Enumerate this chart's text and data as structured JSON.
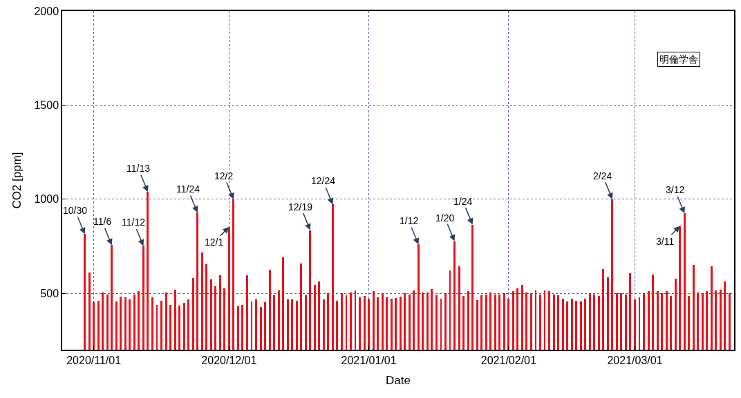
{
  "chart_data": {
    "type": "bar",
    "xlabel": "Date",
    "ylabel": "CO2 [ppm]",
    "grid": true,
    "xlim": [
      "2020-10-25",
      "2021-03-23"
    ],
    "xticks": [
      {
        "value": "2020-11-01",
        "label": "2020/11/01"
      },
      {
        "value": "2020-12-01",
        "label": "2020/12/01"
      },
      {
        "value": "2021-01-01",
        "label": "2021/01/01"
      },
      {
        "value": "2021-02-01",
        "label": "2021/02/01"
      },
      {
        "value": "2021-03-01",
        "label": "2021/03/01"
      }
    ],
    "ylim": [
      200,
      2000
    ],
    "yticks": [
      500,
      1000,
      1500,
      2000
    ],
    "x": [
      "2020-10-30",
      "2020-10-31",
      "2020-11-01",
      "2020-11-02",
      "2020-11-03",
      "2020-11-04",
      "2020-11-05",
      "2020-11-06",
      "2020-11-07",
      "2020-11-08",
      "2020-11-09",
      "2020-11-10",
      "2020-11-11",
      "2020-11-12",
      "2020-11-13",
      "2020-11-14",
      "2020-11-15",
      "2020-11-16",
      "2020-11-17",
      "2020-11-18",
      "2020-11-19",
      "2020-11-20",
      "2020-11-21",
      "2020-11-22",
      "2020-11-23",
      "2020-11-24",
      "2020-11-25",
      "2020-11-26",
      "2020-11-27",
      "2020-11-28",
      "2020-11-29",
      "2020-11-30",
      "2020-12-01",
      "2020-12-02",
      "2020-12-03",
      "2020-12-04",
      "2020-12-05",
      "2020-12-06",
      "2020-12-07",
      "2020-12-08",
      "2020-12-09",
      "2020-12-10",
      "2020-12-11",
      "2020-12-12",
      "2020-12-13",
      "2020-12-14",
      "2020-12-15",
      "2020-12-16",
      "2020-12-17",
      "2020-12-18",
      "2020-12-19",
      "2020-12-20",
      "2020-12-21",
      "2020-12-22",
      "2020-12-23",
      "2020-12-24",
      "2020-12-25",
      "2020-12-26",
      "2020-12-27",
      "2020-12-28",
      "2020-12-29",
      "2020-12-30",
      "2020-12-31",
      "2021-01-01",
      "2021-01-02",
      "2021-01-03",
      "2021-01-04",
      "2021-01-05",
      "2021-01-06",
      "2021-01-07",
      "2021-01-08",
      "2021-01-09",
      "2021-01-10",
      "2021-01-11",
      "2021-01-12",
      "2021-01-13",
      "2021-01-14",
      "2021-01-15",
      "2021-01-16",
      "2021-01-17",
      "2021-01-18",
      "2021-01-19",
      "2021-01-20",
      "2021-01-21",
      "2021-01-22",
      "2021-01-23",
      "2021-01-24",
      "2021-01-25",
      "2021-01-26",
      "2021-01-27",
      "2021-01-28",
      "2021-01-29",
      "2021-01-30",
      "2021-01-31",
      "2021-02-01",
      "2021-02-02",
      "2021-02-03",
      "2021-02-04",
      "2021-02-05",
      "2021-02-06",
      "2021-02-07",
      "2021-02-08",
      "2021-02-09",
      "2021-02-10",
      "2021-02-11",
      "2021-02-12",
      "2021-02-13",
      "2021-02-14",
      "2021-02-15",
      "2021-02-16",
      "2021-02-17",
      "2021-02-18",
      "2021-02-19",
      "2021-02-20",
      "2021-02-21",
      "2021-02-22",
      "2021-02-23",
      "2021-02-24",
      "2021-02-25",
      "2021-02-26",
      "2021-02-27",
      "2021-02-28",
      "2021-03-01",
      "2021-03-02",
      "2021-03-03",
      "2021-03-04",
      "2021-03-05",
      "2021-03-06",
      "2021-03-07",
      "2021-03-08",
      "2021-03-09",
      "2021-03-10",
      "2021-03-11",
      "2021-03-12",
      "2021-03-13",
      "2021-03-14",
      "2021-03-15",
      "2021-03-16",
      "2021-03-17",
      "2021-03-18",
      "2021-03-19",
      "2021-03-20",
      "2021-03-21",
      "2021-03-22"
    ],
    "series": [
      {
        "color": "#e8141c",
        "values": [
          815,
          610,
          452,
          461,
          504,
          495,
          756,
          456,
          482,
          478,
          466,
          495,
          511,
          752,
          1039,
          478,
          440,
          461,
          504,
          440,
          520,
          436,
          448,
          469,
          583,
          929,
          718,
          655,
          575,
          538,
          596,
          525,
          852,
          1000,
          431,
          440,
          596,
          456,
          466,
          427,
          452,
          624,
          490,
          515,
          692,
          466,
          466,
          461,
          659,
          490,
          836,
          544,
          563,
          469,
          499,
          972,
          461,
          499,
          490,
          504,
          515,
          478,
          486,
          473,
          511,
          478,
          499,
          478,
          473,
          475,
          482,
          500,
          495,
          514,
          760,
          506,
          506,
          522,
          489,
          473,
          499,
          621,
          777,
          645,
          485,
          510,
          865,
          464,
          490,
          495,
          506,
          495,
          495,
          499,
          473,
          511,
          528,
          544,
          506,
          499,
          515,
          495,
          515,
          511,
          495,
          489,
          473,
          456,
          473,
          461,
          456,
          473,
          499,
          495,
          485,
          628,
          586,
          1000,
          499,
          499,
          494,
          608,
          469,
          478,
          502,
          511,
          600,
          511,
          502,
          511,
          485,
          579,
          857,
          925,
          485,
          650,
          506,
          499,
          511,
          642,
          515,
          520,
          562,
          502
        ]
      }
    ],
    "annotations": [
      {
        "text": "10/30",
        "x": "2020-10-30",
        "y": 815
      },
      {
        "text": "11/6",
        "x": "2020-11-05",
        "y": 756
      },
      {
        "text": "11/12",
        "x": "2020-11-12",
        "y": 752
      },
      {
        "text": "11/13",
        "x": "2020-11-13",
        "y": 1039
      },
      {
        "text": "11/24",
        "x": "2020-11-24",
        "y": 929
      },
      {
        "text": "12/1",
        "x": "2020-12-01",
        "y": 852
      },
      {
        "text": "12/2",
        "x": "2020-12-02",
        "y": 1000
      },
      {
        "text": "12/19",
        "x": "2020-12-19",
        "y": 836
      },
      {
        "text": "12/24",
        "x": "2020-12-24",
        "y": 972
      },
      {
        "text": "1/12",
        "x": "2021-01-12",
        "y": 760
      },
      {
        "text": "1/20",
        "x": "2021-01-20",
        "y": 777
      },
      {
        "text": "1/24",
        "x": "2021-01-24",
        "y": 865
      },
      {
        "text": "2/24",
        "x": "2021-02-24",
        "y": 1000
      },
      {
        "text": "3/11",
        "x": "2021-03-11",
        "y": 857
      },
      {
        "text": "3/12",
        "x": "2021-03-12",
        "y": 925
      },
      "明倫学舎"
    ]
  }
}
